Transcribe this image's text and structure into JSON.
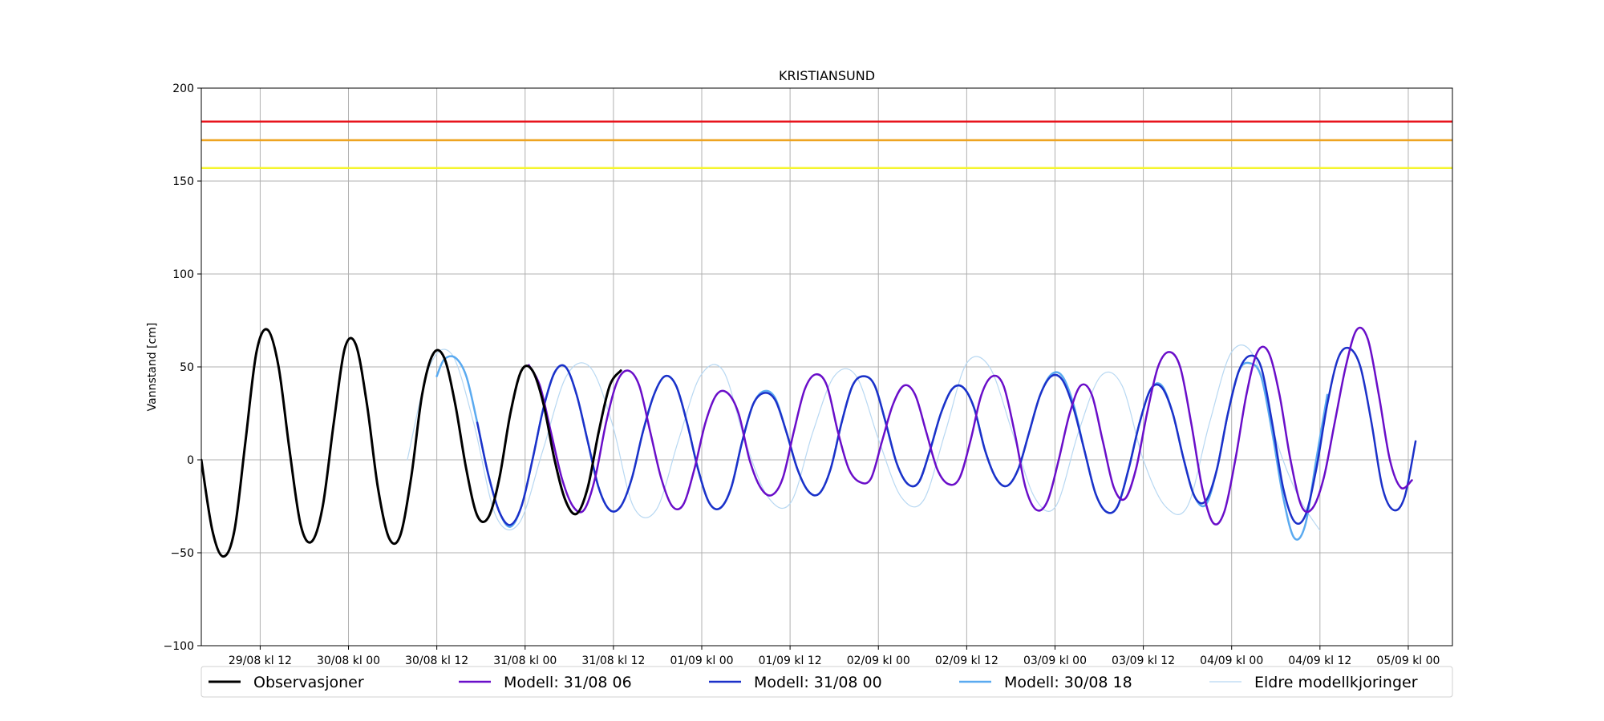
{
  "chart_data": {
    "type": "line",
    "title": "KRISTIANSUND",
    "xlabel": "",
    "ylabel": "Vannstand [cm]",
    "x_unit": "hours",
    "xlim": [
      0,
      170
    ],
    "ylim": [
      -100,
      200
    ],
    "y_ticks": [
      -100,
      -50,
      0,
      50,
      100,
      150,
      200
    ],
    "x_ticks": [
      {
        "x": 8,
        "label": "29/08 kl 12"
      },
      {
        "x": 20,
        "label": "30/08 kl 00"
      },
      {
        "x": 32,
        "label": "30/08 kl 12"
      },
      {
        "x": 44,
        "label": "31/08 kl 00"
      },
      {
        "x": 56,
        "label": "31/08 kl 12"
      },
      {
        "x": 68,
        "label": "01/09 kl 00"
      },
      {
        "x": 80,
        "label": "01/09 kl 12"
      },
      {
        "x": 92,
        "label": "02/09 kl 00"
      },
      {
        "x": 104,
        "label": "02/09 kl 12"
      },
      {
        "x": 116,
        "label": "03/09 kl 00"
      },
      {
        "x": 128,
        "label": "03/09 kl 12"
      },
      {
        "x": 140,
        "label": "04/09 kl 00"
      },
      {
        "x": 152,
        "label": "04/09 kl 12"
      },
      {
        "x": 164,
        "label": "05/09 kl 00"
      }
    ],
    "grid": true,
    "threshold_lines": [
      {
        "y": 182,
        "color": "#e8141c"
      },
      {
        "y": 172,
        "color": "#eea421"
      },
      {
        "y": 157,
        "color": "#f5f52c"
      }
    ],
    "series": [
      {
        "name": "Eldre modellkjoringer",
        "color": "#b8d8f2",
        "width": 1.2,
        "x": [
          28.0,
          31.0,
          34.0,
          37.0,
          40.0,
          43.2,
          46.4,
          49.6,
          52.8,
          55.8,
          58.7,
          61.8,
          64.8,
          67.8,
          70.9,
          73.9,
          77.0,
          80.1,
          83.1,
          86.0,
          89.0,
          92.1,
          95.1,
          98.1,
          101.1,
          104.0,
          107.1,
          110.2,
          113.2,
          116.1,
          119.2,
          122.2,
          125.1,
          128.0,
          131.0,
          134.0,
          137.0,
          140.0,
          143.1,
          146.1,
          149.1,
          152.0
        ],
        "y": [
          0,
          50,
          57,
          20,
          -30,
          -34,
          5,
          45,
          50,
          20,
          -25,
          -27,
          10,
          45,
          48,
          10,
          -20,
          -23,
          15,
          45,
          45,
          10,
          -20,
          -22,
          15,
          52,
          50,
          15,
          -20,
          -25,
          15,
          45,
          40,
          0,
          -25,
          -25,
          20,
          58,
          55,
          10,
          -20,
          -38
        ]
      },
      {
        "name": "Modell: 30/08 18",
        "color": "#5aaaf0",
        "width": 2.5,
        "x": [
          32.0,
          33.0,
          34.5,
          36.0,
          37.5,
          39.0,
          40.5,
          42.0,
          43.5,
          45.0,
          46.5,
          48.0,
          49.5,
          51.0,
          52.5,
          54.0,
          55.5,
          57.0,
          58.5,
          60.0,
          61.5,
          63.0,
          64.5,
          66.0,
          67.5,
          69.0,
          70.5,
          72.0,
          73.5,
          75.0,
          76.5,
          78.0,
          79.5,
          81.0,
          82.5,
          84.0,
          85.5,
          87.0,
          88.5,
          90.0,
          91.5,
          93.0,
          94.5,
          96.0,
          97.5,
          99.0,
          100.5,
          102.0,
          103.5,
          105.0,
          106.5,
          108.0,
          109.5,
          111.0,
          112.5,
          114.0,
          115.5,
          117.0,
          118.5,
          120.0,
          121.5,
          123.0,
          124.5,
          126.0,
          127.5,
          129.0,
          130.5,
          132.0,
          133.5,
          135.0,
          136.5,
          138.0,
          139.5,
          141.0,
          142.5,
          144.0,
          145.5,
          147.0,
          148.5,
          150.0,
          151.5,
          153.0
        ],
        "y": [
          45,
          54,
          55,
          45,
          20,
          -8,
          -28,
          -36,
          -25,
          0,
          28,
          47,
          50,
          35,
          10,
          -15,
          -27,
          -25,
          -10,
          15,
          35,
          45,
          40,
          20,
          -5,
          -23,
          -26,
          -15,
          10,
          30,
          37,
          33,
          15,
          -5,
          -17,
          -18,
          -5,
          20,
          40,
          45,
          40,
          20,
          -2,
          -13,
          -12,
          5,
          25,
          38,
          39,
          28,
          5,
          -10,
          -14,
          -5,
          15,
          35,
          46,
          45,
          30,
          5,
          -18,
          -28,
          -25,
          -5,
          20,
          38,
          40,
          25,
          0,
          -20,
          -24,
          -5,
          25,
          48,
          52,
          45,
          15,
          -20,
          -42,
          -35,
          0,
          35
        ]
      },
      {
        "name": "Modell: 31/08 00",
        "color": "#1c31c9",
        "width": 2.5,
        "x": [
          37.5,
          39.0,
          40.5,
          42.0,
          43.5,
          45.0,
          46.5,
          48.0,
          49.5,
          51.0,
          52.5,
          54.0,
          55.5,
          57.0,
          58.5,
          60.0,
          61.5,
          63.0,
          64.5,
          66.0,
          67.5,
          69.0,
          70.5,
          72.0,
          73.5,
          75.0,
          76.5,
          78.0,
          79.5,
          81.0,
          82.5,
          84.0,
          85.5,
          87.0,
          88.5,
          90.0,
          91.5,
          93.0,
          94.5,
          96.0,
          97.5,
          99.0,
          100.5,
          102.0,
          103.5,
          105.0,
          106.5,
          108.0,
          109.5,
          111.0,
          112.5,
          114.0,
          115.5,
          117.0,
          118.5,
          120.0,
          121.5,
          123.0,
          124.5,
          126.0,
          127.5,
          129.0,
          130.5,
          132.0,
          133.5,
          135.0,
          136.5,
          138.0,
          139.5,
          141.0,
          142.5,
          144.0,
          145.5,
          147.0,
          148.5,
          150.0,
          151.5,
          153.0,
          154.5,
          156.0,
          157.5,
          159.0,
          160.5,
          162.0,
          163.5,
          165.0
        ],
        "y": [
          20,
          -8,
          -28,
          -35,
          -25,
          0,
          28,
          47,
          50,
          35,
          10,
          -15,
          -27,
          -25,
          -10,
          15,
          35,
          45,
          40,
          20,
          -5,
          -23,
          -26,
          -15,
          10,
          30,
          36,
          32,
          15,
          -5,
          -17,
          -18,
          -5,
          20,
          40,
          45,
          40,
          20,
          -2,
          -13,
          -12,
          5,
          25,
          38,
          39,
          28,
          5,
          -10,
          -14,
          -5,
          15,
          35,
          45,
          43,
          28,
          5,
          -18,
          -28,
          -25,
          -5,
          20,
          38,
          39,
          25,
          0,
          -20,
          -22,
          -5,
          25,
          48,
          56,
          50,
          20,
          -15,
          -33,
          -30,
          -5,
          30,
          55,
          60,
          50,
          20,
          -15,
          -27,
          -20,
          10
        ]
      },
      {
        "name": "Modell: 31/08 06",
        "color": "#6a0ec9",
        "width": 2.5,
        "x": [
          44.5,
          46.0,
          47.5,
          49.0,
          50.5,
          52.0,
          53.5,
          55.0,
          56.5,
          58.0,
          59.5,
          61.0,
          62.5,
          64.0,
          65.5,
          67.0,
          68.5,
          70.0,
          71.5,
          73.0,
          74.5,
          76.0,
          77.5,
          79.0,
          80.5,
          82.0,
          83.5,
          85.0,
          86.5,
          88.0,
          89.5,
          91.0,
          92.5,
          94.0,
          95.5,
          97.0,
          98.5,
          100.0,
          101.5,
          103.0,
          104.5,
          106.0,
          107.5,
          109.0,
          110.5,
          112.0,
          113.5,
          115.0,
          116.5,
          118.0,
          119.5,
          121.0,
          122.5,
          124.0,
          125.5,
          127.0,
          128.5,
          130.0,
          131.5,
          133.0,
          134.5,
          136.0,
          137.5,
          139.0,
          140.5,
          142.0,
          143.5,
          145.0,
          146.5,
          148.0,
          149.5,
          151.0,
          152.5,
          154.0,
          155.5,
          157.0,
          158.5,
          160.0,
          161.5,
          163.0,
          164.5
        ],
        "y": [
          51,
          40,
          15,
          -10,
          -25,
          -27,
          -10,
          20,
          42,
          48,
          40,
          15,
          -10,
          -25,
          -24,
          -5,
          20,
          35,
          36,
          25,
          0,
          -15,
          -19,
          -10,
          15,
          38,
          46,
          40,
          15,
          -5,
          -12,
          -10,
          10,
          30,
          40,
          35,
          15,
          -5,
          -13,
          -10,
          10,
          35,
          45,
          40,
          15,
          -15,
          -27,
          -22,
          0,
          25,
          40,
          35,
          10,
          -15,
          -21,
          -5,
          25,
          50,
          58,
          50,
          20,
          -15,
          -34,
          -28,
          0,
          35,
          58,
          58,
          35,
          0,
          -25,
          -26,
          -10,
          20,
          50,
          70,
          65,
          35,
          0,
          -15,
          -11
        ]
      },
      {
        "name": "Observasjoner",
        "color": "#000000",
        "width": 3,
        "x": [
          0.0,
          1.5,
          3.0,
          4.5,
          6.0,
          7.5,
          9.0,
          10.5,
          12.0,
          13.5,
          15.0,
          16.5,
          18.0,
          19.5,
          21.0,
          22.5,
          24.0,
          25.5,
          27.0,
          28.5,
          30.0,
          31.5,
          33.0,
          34.5,
          36.0,
          37.5,
          39.0,
          40.5,
          42.0,
          43.5,
          45.0,
          46.5,
          48.0,
          49.5,
          51.0,
          52.5,
          54.0,
          55.5,
          57.0
        ],
        "y": [
          0,
          -38,
          -52,
          -38,
          10,
          58,
          70,
          50,
          5,
          -35,
          -44,
          -25,
          20,
          60,
          62,
          30,
          -15,
          -42,
          -41,
          -10,
          35,
          57,
          55,
          30,
          -5,
          -30,
          -31,
          -10,
          25,
          48,
          48,
          30,
          0,
          -22,
          -29,
          -15,
          15,
          40,
          48
        ]
      }
    ],
    "legend": {
      "placement": "bottom",
      "order": [
        "Observasjoner",
        "Modell: 31/08 06",
        "Modell: 31/08 00",
        "Modell: 30/08 18",
        "Eldre modellkjoringer"
      ]
    }
  }
}
